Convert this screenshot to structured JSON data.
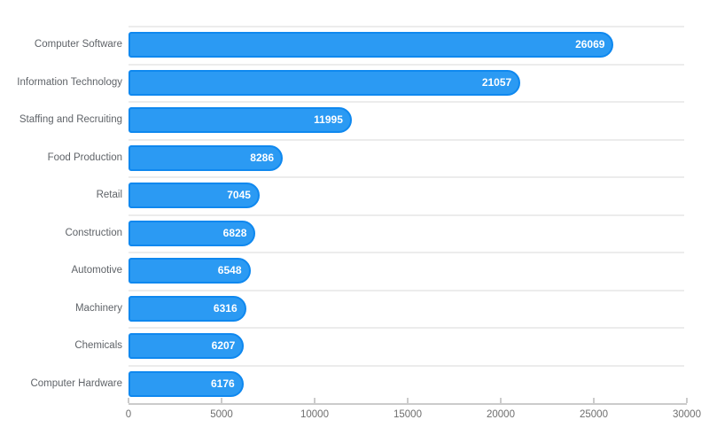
{
  "chart_data": {
    "type": "bar",
    "orientation": "horizontal",
    "title": "",
    "xlabel": "",
    "ylabel": "",
    "categories": [
      "Computer Software",
      "Information Technology",
      "Staffing and Recruiting",
      "Food Production",
      "Retail",
      "Construction",
      "Automotive",
      "Machinery",
      "Chemicals",
      "Computer Hardware"
    ],
    "values": [
      26069,
      21057,
      11995,
      8286,
      7045,
      6828,
      6548,
      6316,
      6207,
      6176
    ],
    "value_labels": [
      "26069",
      "21057",
      "11995",
      "8286",
      "7045",
      "6828",
      "6548",
      "6316",
      "6207",
      "6176"
    ],
    "xlim": [
      0,
      30000
    ],
    "x_ticks": [
      0,
      5000,
      10000,
      15000,
      20000,
      25000,
      30000
    ],
    "x_tick_labels": [
      "0",
      "5000",
      "10000",
      "15000",
      "20000",
      "25000",
      "30000"
    ],
    "legend": "none",
    "grid": "horizontal-row-separators",
    "colors": {
      "background": "#FFFFFF",
      "bar_fill": "#2B9AF3",
      "bar_border": "#0F88EF",
      "value_label": "#FFFFFF",
      "category_label": "#5F6368",
      "tick_label": "#6E6E6E",
      "gridline": "#ECECEC",
      "axis_line": "#CBCBCB"
    }
  }
}
